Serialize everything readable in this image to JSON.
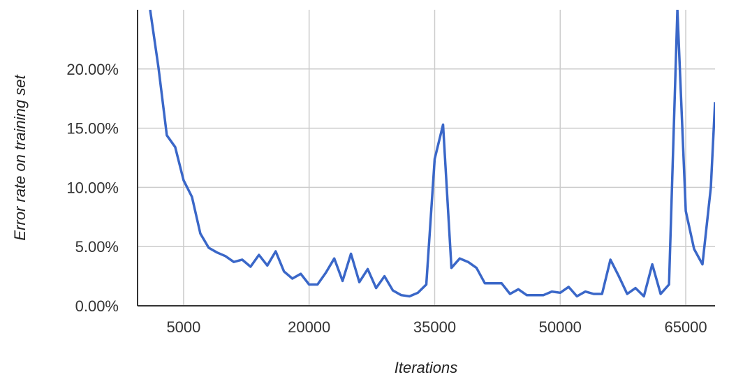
{
  "chart_data": {
    "type": "line",
    "title": "",
    "xlabel": "Iterations",
    "ylabel": "Error rate on training set",
    "xlim": [
      -500,
      68500
    ],
    "ylim": [
      0,
      25
    ],
    "x_ticks": [
      {
        "value": 5000,
        "label": "5000"
      },
      {
        "value": 20000,
        "label": "20000"
      },
      {
        "value": 35000,
        "label": "35000"
      },
      {
        "value": 50000,
        "label": "50000"
      },
      {
        "value": 65000,
        "label": "65000"
      }
    ],
    "y_ticks": [
      {
        "value": 0,
        "label": "0.00%"
      },
      {
        "value": 5,
        "label": "5.00%"
      },
      {
        "value": 10,
        "label": "10.00%"
      },
      {
        "value": 15,
        "label": "15.00%"
      },
      {
        "value": 20,
        "label": "20.00%"
      }
    ],
    "grid": true,
    "legend": "none",
    "series_color": "#3a67c8",
    "series": [
      {
        "x": [
          1000,
          2000,
          3000,
          4000,
          5000,
          6000,
          7000,
          8000,
          9000,
          10000,
          11000,
          12000,
          13000,
          14000,
          15000,
          16000,
          17000,
          18000,
          19000,
          20000,
          21000,
          22000,
          23000,
          24000,
          25000,
          26000,
          27000,
          28000,
          29000,
          30000,
          31000,
          32000,
          33000,
          34000,
          35000,
          36000,
          37000,
          38000,
          39000,
          40000,
          41000,
          42000,
          43000,
          44000,
          45000,
          46000,
          47000,
          48000,
          49000,
          50000,
          51000,
          52000,
          53000,
          54000,
          55000,
          56000,
          57000,
          58000,
          59000,
          60000,
          61000,
          62000,
          63000,
          64000,
          65000,
          66000,
          67000,
          68000,
          68500
        ],
        "y": [
          25.0,
          20.1,
          14.4,
          13.4,
          10.6,
          9.2,
          6.1,
          4.9,
          4.5,
          4.2,
          3.7,
          3.9,
          3.3,
          4.3,
          3.4,
          4.6,
          2.9,
          2.3,
          2.7,
          1.8,
          1.8,
          2.8,
          4.0,
          2.1,
          4.4,
          2.0,
          3.1,
          1.5,
          2.5,
          1.3,
          0.9,
          0.8,
          1.1,
          1.8,
          12.4,
          15.3,
          3.2,
          4.0,
          3.7,
          3.2,
          1.9,
          1.9,
          1.9,
          1.0,
          1.4,
          0.9,
          0.9,
          0.9,
          1.2,
          1.1,
          1.6,
          0.8,
          1.2,
          1.0,
          1.0,
          3.9,
          2.5,
          1.0,
          1.5,
          0.8,
          3.5,
          1.0,
          1.8,
          25.0,
          8.0,
          4.8,
          3.5,
          10.0,
          17.2
        ]
      }
    ]
  }
}
